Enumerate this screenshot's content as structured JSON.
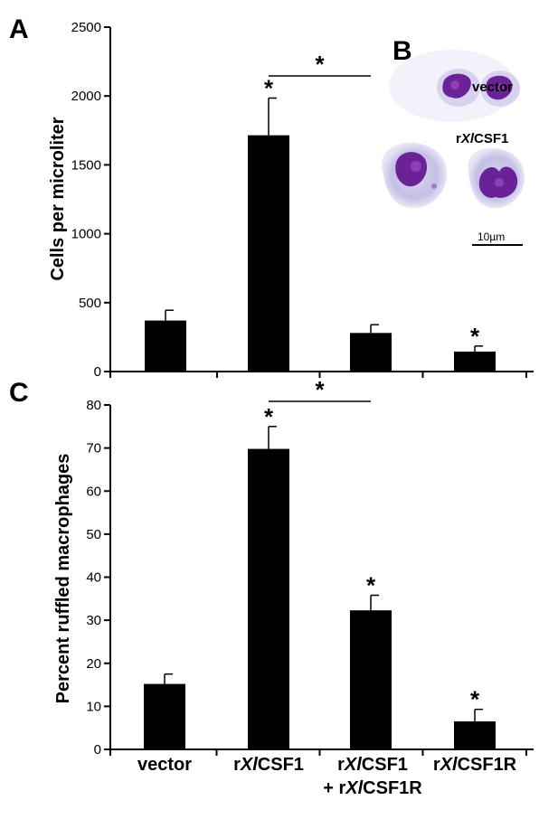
{
  "panels": {
    "a": "A",
    "b": "B",
    "c": "C"
  },
  "chart_data": [
    {
      "type": "bar",
      "panel": "A",
      "ylabel": "Cells per microliter",
      "ylim": [
        0,
        2500
      ],
      "yticks": [
        "0",
        "500",
        "1000",
        "1500",
        "2000",
        "2500"
      ],
      "categories": [
        "vector",
        "rXlCSF1",
        "rXlCSF1 + rXlCSF1R",
        "rXlCSF1R"
      ],
      "values": [
        370,
        1715,
        280,
        145
      ],
      "errors": [
        75,
        270,
        60,
        40
      ],
      "stars": [
        "",
        "*",
        "",
        "*"
      ],
      "bracket": {
        "from": 1,
        "to": 2,
        "label": "*"
      }
    },
    {
      "type": "bar",
      "panel": "C",
      "ylabel": "Percent ruffled macrophages",
      "ylim": [
        0,
        80
      ],
      "yticks": [
        "0",
        "10",
        "20",
        "30",
        "40",
        "50",
        "60",
        "70",
        "80"
      ],
      "categories": [
        "vector",
        "rXlCSF1",
        "rXlCSF1 + rXlCSF1R",
        "rXlCSF1R"
      ],
      "values": [
        15.2,
        69.8,
        32.3,
        6.5
      ],
      "errors": [
        2.3,
        5.2,
        3.5,
        2.8
      ],
      "stars": [
        "",
        "*",
        "*",
        "*"
      ],
      "bracket": {
        "from": 1,
        "to": 2,
        "label": "*"
      }
    }
  ],
  "micrograph": {
    "top_label": "vector",
    "bottom_label_prefix": "r",
    "bottom_label_italic": "Xl",
    "bottom_label_suffix": "CSF1",
    "scale_bar": "10µm"
  },
  "x_labels": [
    {
      "line1_pre": "vector",
      "line1_it": "",
      "line1_post": ""
    },
    {
      "line1_pre": "r",
      "line1_it": "Xl",
      "line1_post": "CSF1"
    },
    {
      "line1_pre": "r",
      "line1_it": "Xl",
      "line1_post": "CSF1",
      "line2_pre": "+ r",
      "line2_it": "Xl",
      "line2_post": "CSF1R"
    },
    {
      "line1_pre": "r",
      "line1_it": "Xl",
      "line1_post": "CSF1R"
    }
  ],
  "colors": {
    "bar": "#000000",
    "cell_outer": "#b9b4dd",
    "cell_nucleus": "#7a2aa0"
  }
}
